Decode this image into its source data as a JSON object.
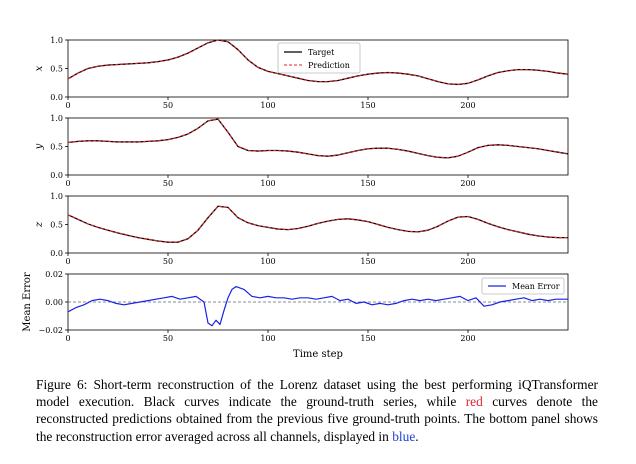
{
  "colors": {
    "target": "#000000",
    "prediction": "#e0262b",
    "error": "#1a22e6",
    "zero_line": "#666666"
  },
  "chart_data": [
    {
      "type": "line",
      "panel": "x",
      "ylabel": "x",
      "xlim": [
        0,
        250
      ],
      "ylim": [
        0.0,
        1.0
      ],
      "yticks": [
        "0.0",
        "0.5",
        "1.0"
      ],
      "xticks": [
        "0",
        "50",
        "100",
        "150",
        "200"
      ],
      "legend": {
        "position": "top-center",
        "entries": [
          "Target",
          "Prediction"
        ]
      },
      "x": [
        0,
        5,
        10,
        15,
        20,
        25,
        30,
        35,
        40,
        45,
        50,
        55,
        60,
        65,
        70,
        75,
        80,
        85,
        90,
        95,
        100,
        105,
        110,
        115,
        120,
        125,
        130,
        135,
        140,
        145,
        150,
        155,
        160,
        165,
        170,
        175,
        180,
        185,
        190,
        195,
        200,
        205,
        210,
        215,
        220,
        225,
        230,
        235,
        240,
        245,
        250
      ],
      "series": [
        {
          "name": "Target",
          "values": [
            0.32,
            0.42,
            0.5,
            0.54,
            0.56,
            0.57,
            0.58,
            0.59,
            0.6,
            0.62,
            0.65,
            0.7,
            0.77,
            0.86,
            0.95,
            1.0,
            0.97,
            0.83,
            0.65,
            0.52,
            0.45,
            0.41,
            0.37,
            0.33,
            0.29,
            0.27,
            0.27,
            0.29,
            0.33,
            0.37,
            0.4,
            0.42,
            0.43,
            0.42,
            0.4,
            0.37,
            0.32,
            0.27,
            0.23,
            0.22,
            0.24,
            0.3,
            0.37,
            0.43,
            0.46,
            0.48,
            0.48,
            0.47,
            0.45,
            0.42,
            0.4
          ]
        },
        {
          "name": "Prediction",
          "values": [
            0.32,
            0.42,
            0.5,
            0.54,
            0.56,
            0.57,
            0.58,
            0.59,
            0.6,
            0.62,
            0.65,
            0.7,
            0.77,
            0.86,
            0.95,
            1.0,
            0.97,
            0.83,
            0.65,
            0.52,
            0.45,
            0.41,
            0.37,
            0.33,
            0.29,
            0.27,
            0.27,
            0.29,
            0.33,
            0.37,
            0.4,
            0.42,
            0.43,
            0.42,
            0.4,
            0.37,
            0.32,
            0.27,
            0.23,
            0.22,
            0.24,
            0.3,
            0.37,
            0.43,
            0.46,
            0.48,
            0.48,
            0.47,
            0.45,
            0.42,
            0.4
          ]
        }
      ]
    },
    {
      "type": "line",
      "panel": "y",
      "ylabel": "y",
      "xlim": [
        0,
        250
      ],
      "ylim": [
        0.0,
        1.0
      ],
      "yticks": [
        "0.0",
        "0.5",
        "1.0"
      ],
      "xticks": [
        "0",
        "50",
        "100",
        "150",
        "200"
      ],
      "x": [
        0,
        5,
        10,
        15,
        20,
        25,
        30,
        35,
        40,
        45,
        50,
        55,
        60,
        65,
        70,
        75,
        80,
        85,
        90,
        95,
        100,
        105,
        110,
        115,
        120,
        125,
        130,
        135,
        140,
        145,
        150,
        155,
        160,
        165,
        170,
        175,
        180,
        185,
        190,
        195,
        200,
        205,
        210,
        215,
        220,
        225,
        230,
        235,
        240,
        245,
        250
      ],
      "series": [
        {
          "name": "Target",
          "values": [
            0.57,
            0.59,
            0.6,
            0.6,
            0.59,
            0.58,
            0.58,
            0.58,
            0.59,
            0.6,
            0.62,
            0.66,
            0.72,
            0.82,
            0.95,
            0.98,
            0.75,
            0.5,
            0.43,
            0.42,
            0.43,
            0.43,
            0.42,
            0.4,
            0.37,
            0.34,
            0.33,
            0.35,
            0.39,
            0.43,
            0.46,
            0.47,
            0.47,
            0.45,
            0.42,
            0.38,
            0.34,
            0.31,
            0.3,
            0.33,
            0.4,
            0.48,
            0.52,
            0.53,
            0.52,
            0.5,
            0.48,
            0.46,
            0.43,
            0.4,
            0.37
          ]
        },
        {
          "name": "Prediction",
          "values": [
            0.57,
            0.59,
            0.6,
            0.6,
            0.59,
            0.58,
            0.58,
            0.58,
            0.59,
            0.6,
            0.62,
            0.66,
            0.72,
            0.82,
            0.95,
            0.98,
            0.75,
            0.5,
            0.43,
            0.42,
            0.43,
            0.43,
            0.42,
            0.4,
            0.37,
            0.34,
            0.33,
            0.35,
            0.39,
            0.43,
            0.46,
            0.47,
            0.47,
            0.45,
            0.42,
            0.38,
            0.34,
            0.31,
            0.3,
            0.33,
            0.4,
            0.48,
            0.52,
            0.53,
            0.52,
            0.5,
            0.48,
            0.46,
            0.43,
            0.4,
            0.37
          ]
        }
      ]
    },
    {
      "type": "line",
      "panel": "z",
      "ylabel": "z",
      "xlim": [
        0,
        250
      ],
      "ylim": [
        0.0,
        1.0
      ],
      "yticks": [
        "0.0",
        "0.5",
        "1.0"
      ],
      "xticks": [
        "0",
        "50",
        "100",
        "150",
        "200"
      ],
      "x": [
        0,
        5,
        10,
        15,
        20,
        25,
        30,
        35,
        40,
        45,
        50,
        55,
        60,
        65,
        70,
        75,
        80,
        85,
        90,
        95,
        100,
        105,
        110,
        115,
        120,
        125,
        130,
        135,
        140,
        145,
        150,
        155,
        160,
        165,
        170,
        175,
        180,
        185,
        190,
        195,
        200,
        205,
        210,
        215,
        220,
        225,
        230,
        235,
        240,
        245,
        250
      ],
      "series": [
        {
          "name": "Target",
          "values": [
            0.67,
            0.59,
            0.51,
            0.45,
            0.4,
            0.35,
            0.31,
            0.27,
            0.24,
            0.21,
            0.19,
            0.19,
            0.25,
            0.4,
            0.62,
            0.82,
            0.8,
            0.62,
            0.53,
            0.48,
            0.45,
            0.42,
            0.41,
            0.43,
            0.47,
            0.52,
            0.56,
            0.59,
            0.6,
            0.58,
            0.55,
            0.5,
            0.45,
            0.41,
            0.38,
            0.37,
            0.4,
            0.47,
            0.56,
            0.63,
            0.64,
            0.59,
            0.52,
            0.46,
            0.41,
            0.37,
            0.33,
            0.3,
            0.28,
            0.27,
            0.27
          ]
        },
        {
          "name": "Prediction",
          "values": [
            0.67,
            0.59,
            0.51,
            0.45,
            0.4,
            0.35,
            0.31,
            0.27,
            0.24,
            0.21,
            0.19,
            0.19,
            0.25,
            0.4,
            0.62,
            0.82,
            0.8,
            0.62,
            0.53,
            0.48,
            0.45,
            0.42,
            0.41,
            0.43,
            0.47,
            0.52,
            0.56,
            0.59,
            0.6,
            0.58,
            0.55,
            0.5,
            0.45,
            0.41,
            0.38,
            0.37,
            0.4,
            0.47,
            0.56,
            0.63,
            0.64,
            0.59,
            0.52,
            0.46,
            0.41,
            0.37,
            0.33,
            0.3,
            0.28,
            0.27,
            0.27
          ]
        }
      ]
    },
    {
      "type": "line",
      "panel": "error",
      "ylabel": "Mean Error",
      "xlabel": "Time step",
      "xlim": [
        0,
        250
      ],
      "ylim": [
        -0.02,
        0.02
      ],
      "yticks": [
        "−0.02",
        "0.00",
        "0.02"
      ],
      "xticks": [
        "0",
        "50",
        "100",
        "150",
        "200"
      ],
      "legend": {
        "position": "top-right",
        "entries": [
          "Mean Error"
        ]
      },
      "zero_line": true,
      "x": [
        0,
        4,
        8,
        12,
        16,
        20,
        24,
        28,
        32,
        36,
        40,
        44,
        48,
        52,
        56,
        60,
        64,
        68,
        70,
        72,
        74,
        76,
        78,
        80,
        82,
        84,
        88,
        92,
        96,
        100,
        104,
        108,
        112,
        116,
        120,
        124,
        128,
        132,
        136,
        140,
        144,
        148,
        152,
        156,
        160,
        164,
        168,
        172,
        176,
        180,
        184,
        188,
        192,
        196,
        200,
        204,
        208,
        212,
        216,
        220,
        224,
        228,
        232,
        236,
        240,
        244,
        248,
        250
      ],
      "series": [
        {
          "name": "Mean Error",
          "values": [
            -0.007,
            -0.004,
            -0.002,
            0.001,
            0.002,
            0.001,
            -0.001,
            -0.002,
            -0.001,
            0.0,
            0.001,
            0.002,
            0.003,
            0.004,
            0.002,
            0.003,
            0.004,
            0.0,
            -0.015,
            -0.017,
            -0.013,
            -0.016,
            -0.006,
            0.003,
            0.009,
            0.011,
            0.009,
            0.004,
            0.003,
            0.004,
            0.003,
            0.003,
            0.002,
            0.003,
            0.003,
            0.002,
            0.003,
            0.004,
            0.001,
            0.002,
            -0.001,
            0.0,
            -0.002,
            -0.001,
            -0.002,
            -0.001,
            0.001,
            0.002,
            0.001,
            0.002,
            0.001,
            0.002,
            0.003,
            0.004,
            0.001,
            0.003,
            -0.003,
            -0.002,
            0.0,
            0.001,
            0.002,
            0.003,
            0.001,
            0.002,
            0.001,
            0.002,
            0.002,
            0.002
          ]
        }
      ]
    }
  ],
  "caption": {
    "part1": "Figure 6: Short-term reconstruction of the Lorenz dataset using the best performing iQTransformer model execution. Black curves indicate the ground-truth series, while ",
    "red_word": "red",
    "part2": " curves denote the reconstructed predictions obtained from the previous five ground-truth points. The bottom panel shows the reconstruction error averaged across all channels, displayed in ",
    "blue_word": "blue",
    "part3": "."
  }
}
